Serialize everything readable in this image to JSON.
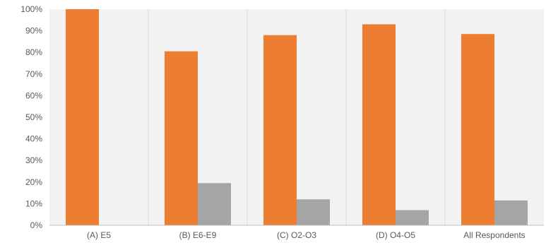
{
  "chart_data": {
    "type": "bar",
    "categories": [
      "(A) E5",
      "(B) E6-E9",
      "(C) O2-O3",
      "(D) O4-O5",
      "All Respondents"
    ],
    "series": [
      {
        "values": [
          100,
          80.5,
          88,
          93,
          88.5
        ]
      },
      {
        "values": [
          0,
          19.5,
          12,
          7,
          11.5
        ]
      }
    ],
    "y_ticks": [
      "0%",
      "10%",
      "20%",
      "30%",
      "40%",
      "50%",
      "60%",
      "70%",
      "80%",
      "90%",
      "100%"
    ],
    "ylim": [
      0,
      100
    ],
    "grid": "vertical separators between categories",
    "legend": "none",
    "colors": {
      "series_1": "#ED7D31",
      "series_2": "#A5A5A5",
      "plot_background": "#F2F2F2",
      "grid_line": "#D9D9D9",
      "axis_line": "#BFBFBF",
      "tick_text": "#595959"
    }
  }
}
